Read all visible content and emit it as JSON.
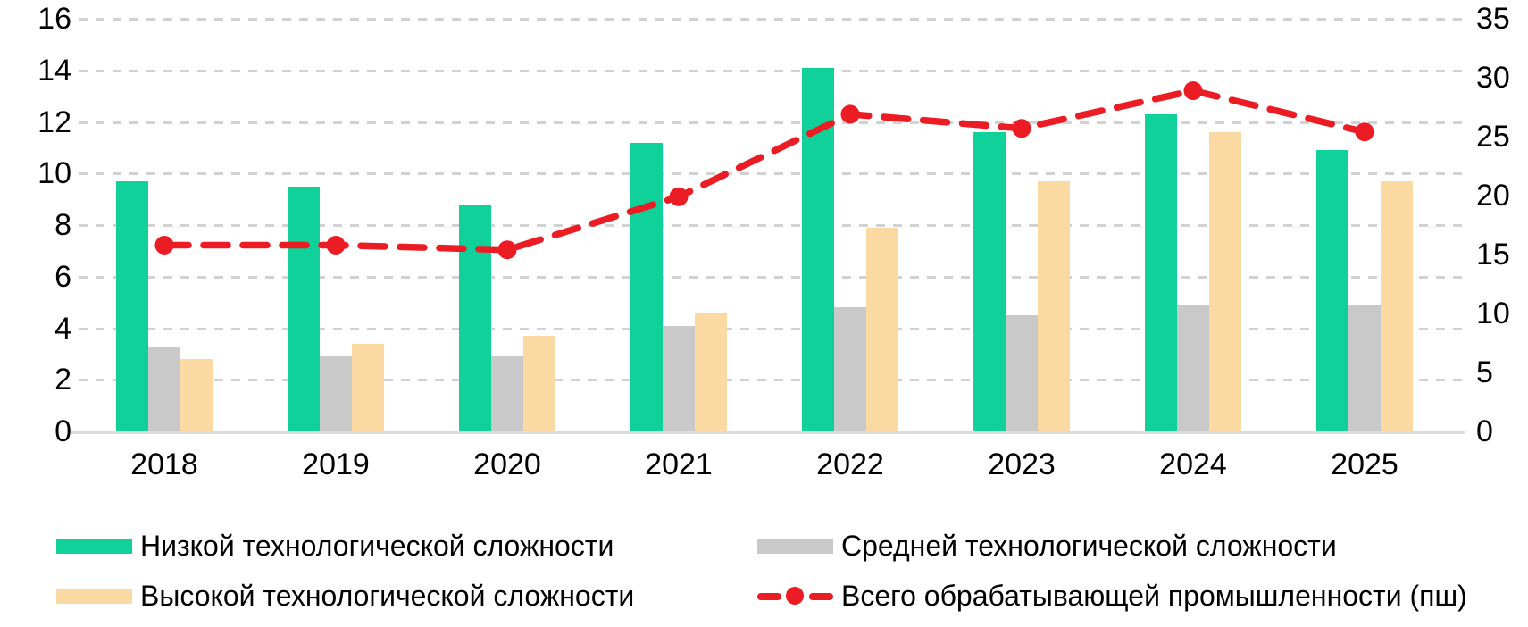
{
  "chart_data": {
    "type": "bar",
    "subtype": "grouped-bars-with-line-overlay",
    "categories": [
      "2018",
      "2019",
      "2020",
      "2021",
      "2022",
      "2023",
      "2024",
      "2025"
    ],
    "series": [
      {
        "name": "Низкой технологической сложности",
        "type": "bar",
        "axis": "left",
        "color": "#11d19b",
        "values": [
          9.7,
          9.5,
          8.8,
          11.2,
          14.1,
          11.6,
          12.3,
          10.9
        ]
      },
      {
        "name": "Средней технологической сложности",
        "type": "bar",
        "axis": "left",
        "color": "#c9c9c9",
        "values": [
          3.3,
          2.9,
          2.9,
          4.1,
          4.8,
          4.5,
          4.9,
          4.9
        ]
      },
      {
        "name": "Высокой технологической сложности",
        "type": "bar",
        "axis": "left",
        "color": "#fad9a2",
        "values": [
          2.8,
          3.4,
          3.7,
          4.6,
          7.9,
          9.7,
          11.6,
          9.7
        ]
      },
      {
        "name": "Всего обрабатывающей промышленности (пш)",
        "type": "line",
        "axis": "right",
        "line_style": "dashed",
        "marker": "circle",
        "color": "#ec1c24",
        "values": [
          15.8,
          15.8,
          15.4,
          19.9,
          26.9,
          25.7,
          28.9,
          25.4
        ]
      }
    ],
    "left_axis": {
      "min": 0,
      "max": 16,
      "step": 2,
      "ticks": [
        0,
        2,
        4,
        6,
        8,
        10,
        12,
        14,
        16
      ]
    },
    "right_axis": {
      "min": 0,
      "max": 35,
      "step": 5,
      "ticks": [
        0,
        5,
        10,
        15,
        20,
        25,
        30,
        35
      ]
    },
    "grid": "horizontal-dashed",
    "legend_position": "bottom-two-columns",
    "title": "",
    "xlabel": "",
    "ylabel": ""
  },
  "legend": {
    "items": [
      {
        "label": "Низкой технологической сложности",
        "swatch": "bar",
        "color": "#11d19b"
      },
      {
        "label": "Средней технологической сложности",
        "swatch": "bar",
        "color": "#c9c9c9"
      },
      {
        "label": "Высокой технологической сложности",
        "swatch": "bar",
        "color": "#fad9a2"
      },
      {
        "label": "Всего обрабатывающей промышленности (пш)",
        "swatch": "dashed-line-with-dot",
        "color": "#ec1c24"
      }
    ]
  },
  "colors": {
    "grid": "#d2d2d2",
    "axis_baseline": "#dcdcdc",
    "text": "#000000"
  }
}
